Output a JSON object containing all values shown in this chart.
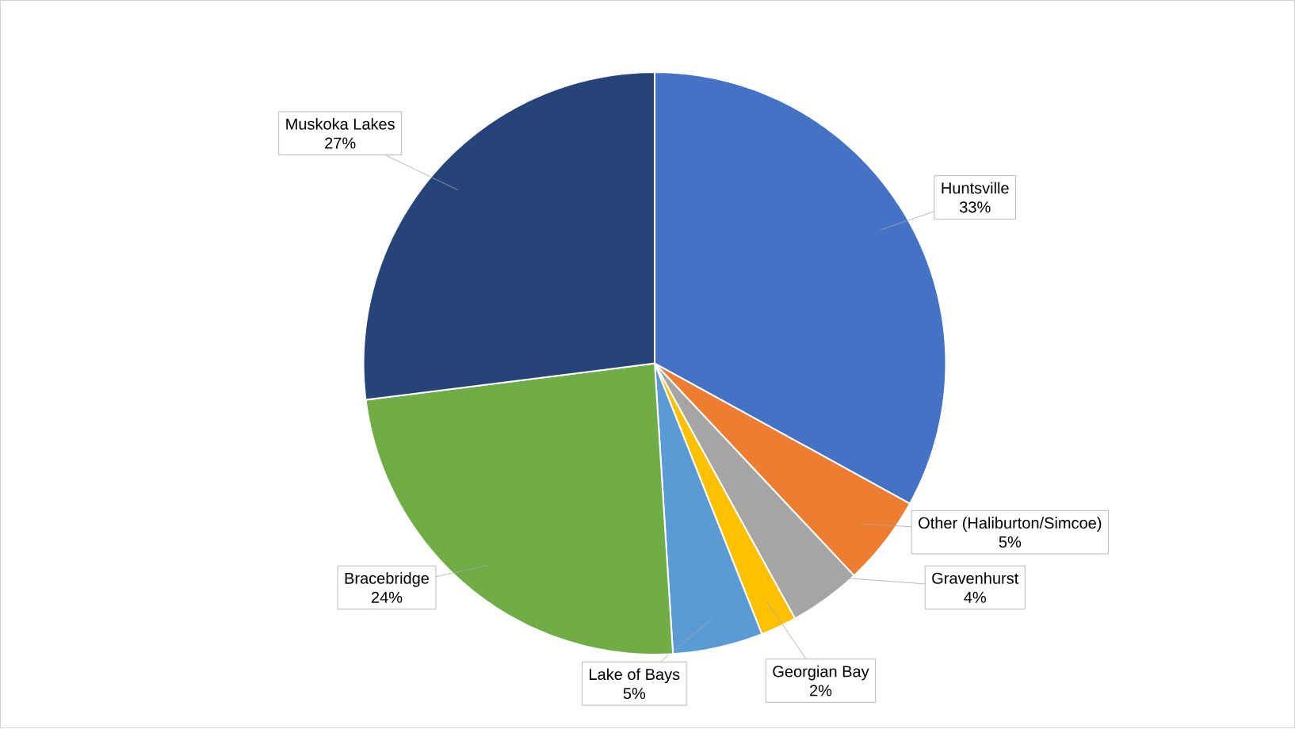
{
  "chart_data": {
    "type": "pie",
    "categories": [
      "Huntsville",
      "Other (Haliburton/Simcoe)",
      "Gravenhurst",
      "Georgian Bay",
      "Lake of Bays",
      "Bracebridge",
      "Muskoka Lakes"
    ],
    "values": [
      33,
      5,
      4,
      2,
      5,
      24,
      27
    ],
    "value_labels": [
      "33%",
      "5%",
      "4%",
      "2%",
      "5%",
      "24%",
      "27%"
    ],
    "colors": [
      "#4472c4",
      "#ed7d31",
      "#a5a5a5",
      "#ffc000",
      "#5b9bd5",
      "#70ad47",
      "#264478"
    ]
  }
}
